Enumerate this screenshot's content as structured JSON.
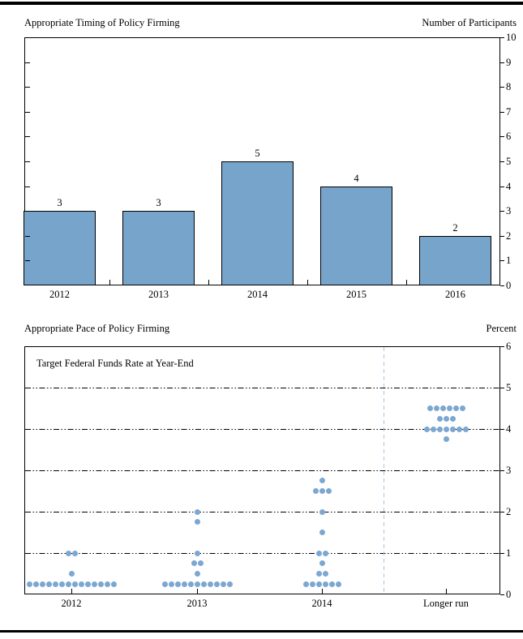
{
  "page": {
    "description": "FOMC Summary of Economic Projections policy figure"
  },
  "chart_data": [
    {
      "type": "bar",
      "title": "Appropriate Timing of Policy Firming",
      "ylabel": "Number of Participants",
      "xlabel": "",
      "categories": [
        "2012",
        "2013",
        "2014",
        "2015",
        "2016"
      ],
      "values": [
        3,
        3,
        5,
        4,
        2
      ],
      "bar_labels": [
        "3",
        "3",
        "5",
        "4",
        "2"
      ],
      "ylim": [
        0,
        10
      ],
      "yticks": [
        0,
        1,
        2,
        3,
        4,
        5,
        6,
        7,
        8,
        9,
        10
      ],
      "grid": "off",
      "legend": "none",
      "bar_color": "#76A4CB",
      "bar_border_color": "#000000"
    },
    {
      "type": "scatter",
      "title": "Appropriate Pace of Policy Firming",
      "ylabel": "Percent",
      "xlabel": "",
      "annotation": "Target Federal Funds Rate at Year-End",
      "categories": [
        "2012",
        "2013",
        "2014",
        "Longer run"
      ],
      "ylim": [
        0,
        6
      ],
      "yticks": [
        0,
        1,
        2,
        3,
        4,
        5,
        6
      ],
      "gridlines_at": [
        1,
        2,
        3,
        4,
        5
      ],
      "grid_style": "dash-dot",
      "legend": "none",
      "dot_color": "#7CA7D1",
      "divider_color": "#A9C6DF",
      "divider_between": [
        "2014",
        "Longer run"
      ],
      "series": [
        {
          "category": "2012",
          "points": [
            {
              "value": 1.0,
              "count": 2
            },
            {
              "value": 0.5,
              "count": 1
            },
            {
              "value": 0.25,
              "count": 14
            }
          ]
        },
        {
          "category": "2013",
          "points": [
            {
              "value": 2.0,
              "count": 1
            },
            {
              "value": 1.75,
              "count": 1
            },
            {
              "value": 1.0,
              "count": 1
            },
            {
              "value": 0.75,
              "count": 2
            },
            {
              "value": 0.5,
              "count": 1
            },
            {
              "value": 0.25,
              "count": 11
            }
          ]
        },
        {
          "category": "2014",
          "points": [
            {
              "value": 2.75,
              "count": 1
            },
            {
              "value": 2.5,
              "count": 3
            },
            {
              "value": 2.0,
              "count": 1
            },
            {
              "value": 1.5,
              "count": 1
            },
            {
              "value": 1.0,
              "count": 2
            },
            {
              "value": 0.75,
              "count": 1
            },
            {
              "value": 0.5,
              "count": 2
            },
            {
              "value": 0.25,
              "count": 6
            }
          ]
        },
        {
          "category": "Longer run",
          "points": [
            {
              "value": 4.5,
              "count": 6
            },
            {
              "value": 4.25,
              "count": 3
            },
            {
              "value": 4.0,
              "count": 7
            },
            {
              "value": 3.75,
              "count": 1
            }
          ]
        }
      ]
    }
  ]
}
